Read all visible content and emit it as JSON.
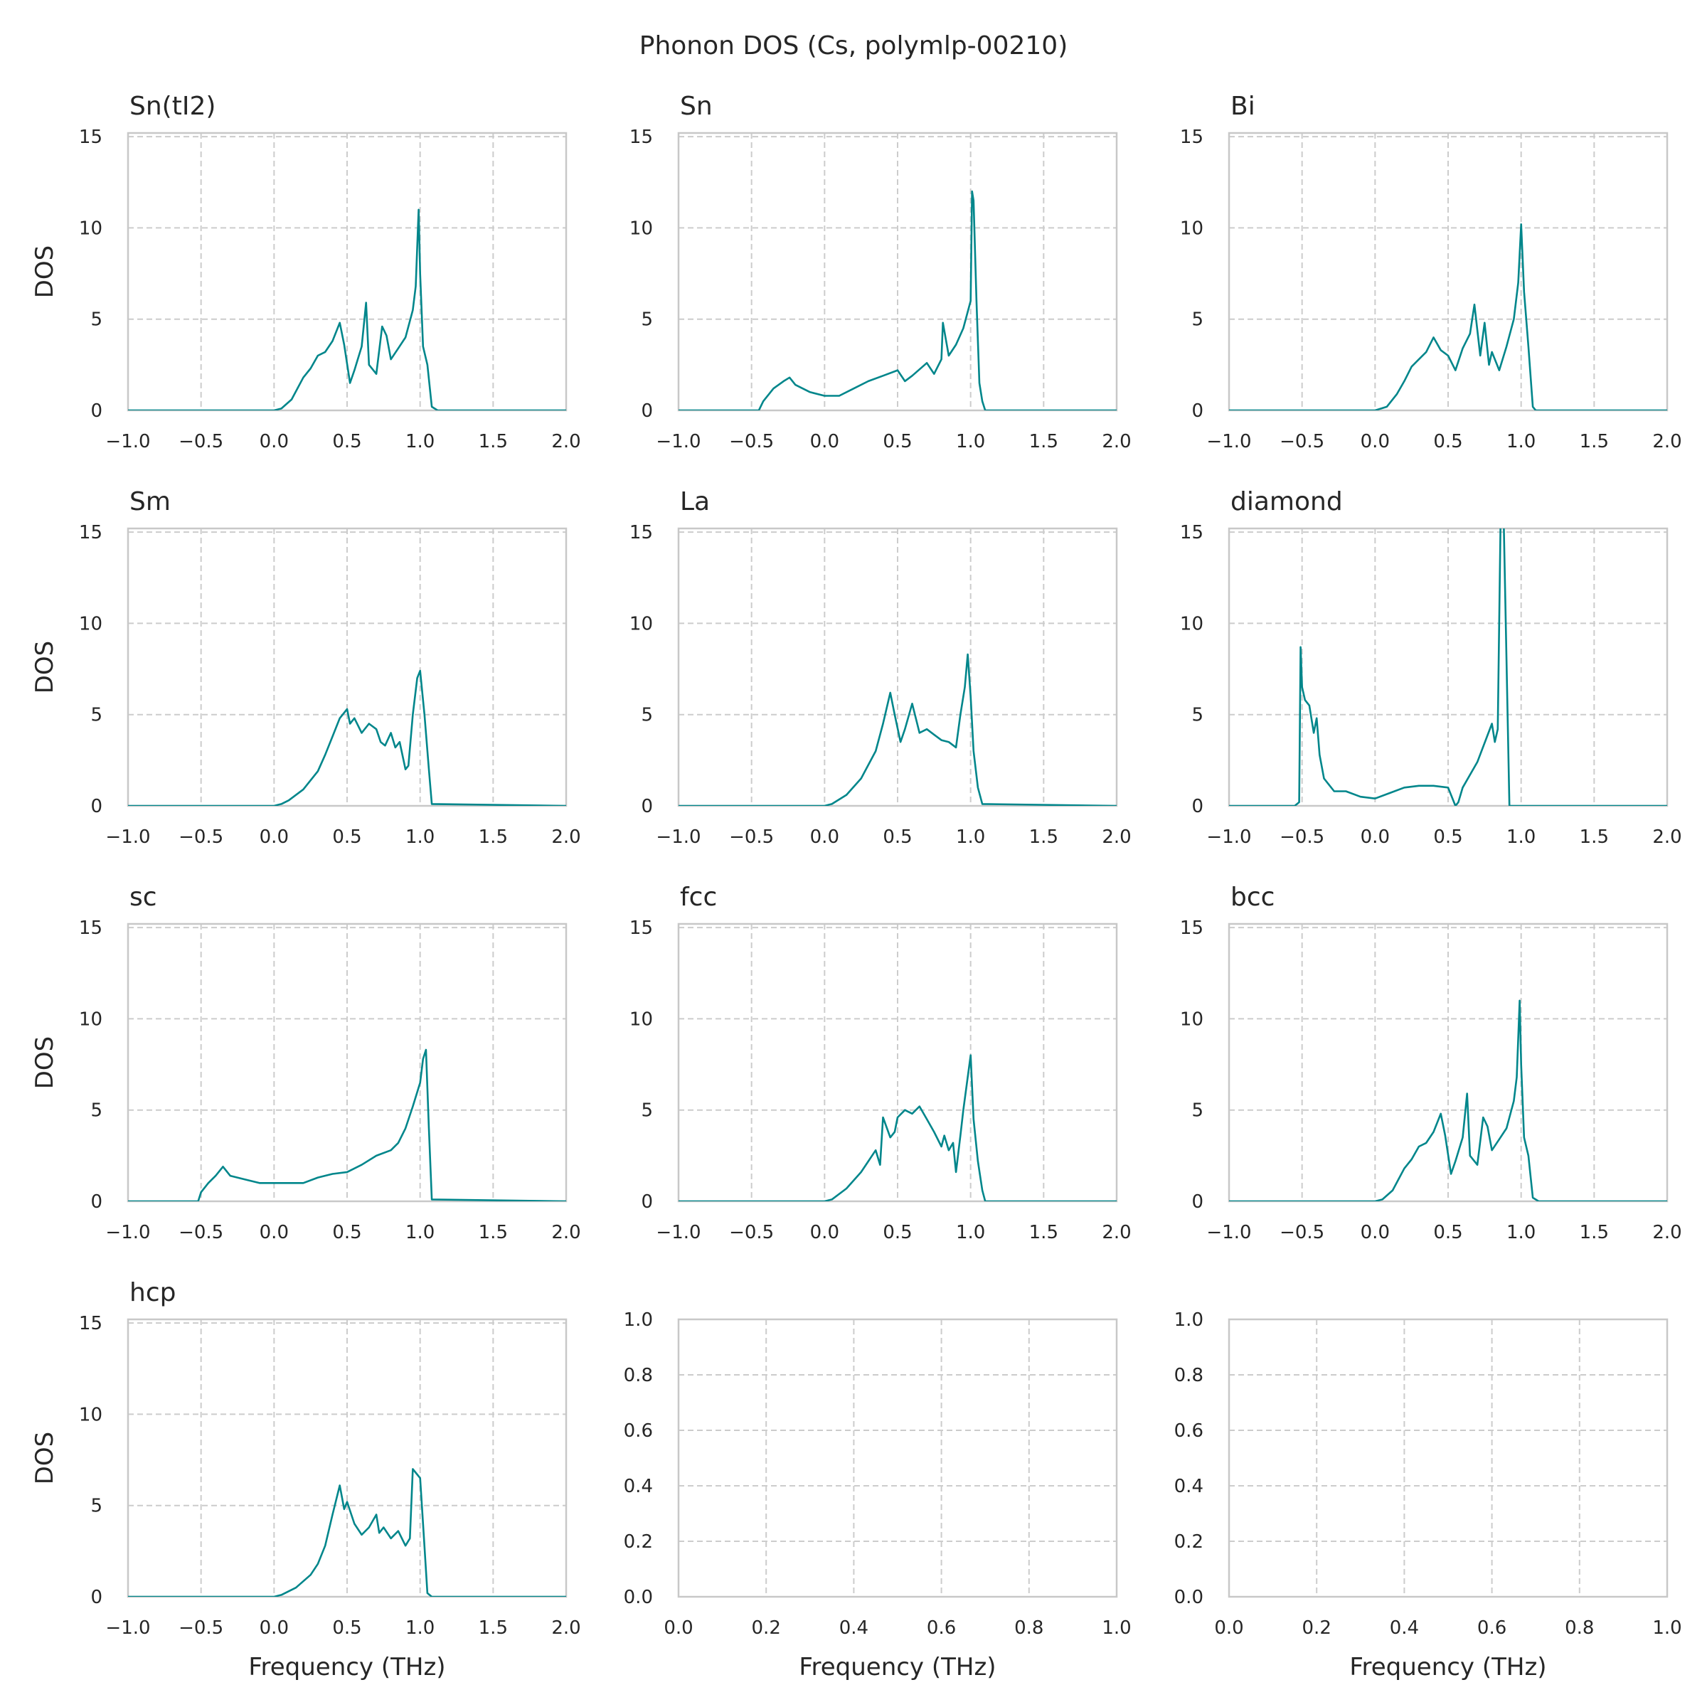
{
  "figure": {
    "title": "Phonon DOS (Cs, polymlp-00210)",
    "line_color": "#00868b"
  },
  "chart_data": [
    {
      "type": "line",
      "title": "Sn(tI2)",
      "xlabel": "",
      "ylabel": "DOS",
      "xlim": [
        -1,
        2
      ],
      "ylim": [
        0,
        15.2
      ],
      "xticks": [
        "−1.0",
        "−0.5",
        "0.0",
        "0.5",
        "1.0",
        "1.5",
        "2.0"
      ],
      "yticks": [
        "0",
        "5",
        "10",
        "15"
      ],
      "grid": true,
      "x": [
        -1.0,
        0.0,
        0.05,
        0.12,
        0.2,
        0.25,
        0.3,
        0.35,
        0.4,
        0.45,
        0.48,
        0.52,
        0.55,
        0.6,
        0.63,
        0.65,
        0.7,
        0.74,
        0.77,
        0.8,
        0.85,
        0.9,
        0.95,
        0.97,
        0.99,
        1.0,
        1.02,
        1.05,
        1.08,
        1.12,
        2.0
      ],
      "y": [
        0,
        0,
        0.1,
        0.6,
        1.8,
        2.3,
        3.0,
        3.2,
        3.8,
        4.8,
        3.6,
        1.5,
        2.2,
        3.5,
        5.9,
        2.5,
        2.0,
        4.6,
        4.1,
        2.8,
        3.4,
        4.0,
        5.5,
        6.8,
        11.0,
        7.5,
        3.5,
        2.5,
        0.2,
        0,
        0
      ]
    },
    {
      "type": "line",
      "title": "Sn",
      "xlabel": "",
      "ylabel": "",
      "xlim": [
        -1,
        2
      ],
      "ylim": [
        0,
        15.2
      ],
      "xticks": [
        "−1.0",
        "−0.5",
        "0.0",
        "0.5",
        "1.0",
        "1.5",
        "2.0"
      ],
      "yticks": [
        "0",
        "5",
        "10",
        "15"
      ],
      "grid": true,
      "x": [
        -1.0,
        -0.45,
        -0.42,
        -0.35,
        -0.28,
        -0.24,
        -0.2,
        -0.1,
        0.0,
        0.1,
        0.2,
        0.3,
        0.4,
        0.5,
        0.55,
        0.6,
        0.7,
        0.75,
        0.8,
        0.81,
        0.85,
        0.9,
        0.95,
        1.0,
        1.01,
        1.02,
        1.04,
        1.06,
        1.08,
        1.1,
        2.0
      ],
      "y": [
        0,
        0,
        0.5,
        1.2,
        1.6,
        1.8,
        1.4,
        1.0,
        0.8,
        0.8,
        1.2,
        1.6,
        1.9,
        2.2,
        1.6,
        1.9,
        2.6,
        2.0,
        2.8,
        4.8,
        3.0,
        3.6,
        4.5,
        6.0,
        12.0,
        11.5,
        6.0,
        1.5,
        0.5,
        0,
        0
      ]
    },
    {
      "type": "line",
      "title": "Bi",
      "xlabel": "",
      "ylabel": "",
      "xlim": [
        -1,
        2
      ],
      "ylim": [
        0,
        15.2
      ],
      "xticks": [
        "−1.0",
        "−0.5",
        "0.0",
        "0.5",
        "1.0",
        "1.5",
        "2.0"
      ],
      "yticks": [
        "0",
        "5",
        "10",
        "15"
      ],
      "grid": true,
      "x": [
        -1.0,
        0.0,
        0.08,
        0.15,
        0.2,
        0.25,
        0.3,
        0.35,
        0.4,
        0.45,
        0.5,
        0.55,
        0.6,
        0.65,
        0.68,
        0.72,
        0.75,
        0.78,
        0.8,
        0.85,
        0.9,
        0.95,
        0.98,
        1.0,
        1.02,
        1.05,
        1.08,
        1.1,
        2.0
      ],
      "y": [
        0,
        0,
        0.2,
        0.9,
        1.6,
        2.4,
        2.8,
        3.2,
        4.0,
        3.3,
        3.0,
        2.2,
        3.4,
        4.2,
        5.8,
        3.0,
        4.8,
        2.5,
        3.2,
        2.2,
        3.5,
        5.0,
        7.0,
        10.2,
        6.5,
        3.5,
        0.2,
        0,
        0
      ]
    },
    {
      "type": "line",
      "title": "Sm",
      "xlabel": "",
      "ylabel": "DOS",
      "xlim": [
        -1,
        2
      ],
      "ylim": [
        0,
        15.2
      ],
      "xticks": [
        "−1.0",
        "−0.5",
        "0.0",
        "0.5",
        "1.0",
        "1.5",
        "2.0"
      ],
      "yticks": [
        "0",
        "5",
        "10",
        "15"
      ],
      "grid": true,
      "x": [
        -1.0,
        0.0,
        0.05,
        0.1,
        0.2,
        0.3,
        0.35,
        0.4,
        0.45,
        0.5,
        0.52,
        0.55,
        0.6,
        0.65,
        0.7,
        0.73,
        0.76,
        0.8,
        0.83,
        0.86,
        0.9,
        0.92,
        0.95,
        0.98,
        1.0,
        1.03,
        1.06,
        1.08,
        2.0
      ],
      "y": [
        0,
        0,
        0.1,
        0.3,
        0.9,
        1.9,
        2.8,
        3.8,
        4.8,
        5.3,
        4.5,
        4.8,
        4.0,
        4.5,
        4.2,
        3.5,
        3.3,
        4.0,
        3.2,
        3.5,
        2.0,
        2.2,
        5.0,
        7.0,
        7.4,
        5.0,
        2.0,
        0.1,
        0
      ]
    },
    {
      "type": "line",
      "title": "La",
      "xlabel": "",
      "ylabel": "",
      "xlim": [
        -1,
        2
      ],
      "ylim": [
        0,
        15.2
      ],
      "xticks": [
        "−1.0",
        "−0.5",
        "0.0",
        "0.5",
        "1.0",
        "1.5",
        "2.0"
      ],
      "yticks": [
        "0",
        "5",
        "10",
        "15"
      ],
      "grid": true,
      "x": [
        -1.0,
        0.0,
        0.05,
        0.15,
        0.25,
        0.35,
        0.4,
        0.45,
        0.48,
        0.52,
        0.55,
        0.6,
        0.65,
        0.7,
        0.75,
        0.8,
        0.85,
        0.9,
        0.93,
        0.96,
        0.98,
        1.0,
        1.02,
        1.05,
        1.08,
        2.0
      ],
      "y": [
        0,
        0,
        0.1,
        0.6,
        1.5,
        3.0,
        4.5,
        6.2,
        5.0,
        3.5,
        4.2,
        5.6,
        4.0,
        4.2,
        3.9,
        3.6,
        3.5,
        3.2,
        5.0,
        6.5,
        8.3,
        6.0,
        3.0,
        1.0,
        0.1,
        0
      ]
    },
    {
      "type": "line",
      "title": "diamond",
      "xlabel": "",
      "ylabel": "",
      "xlim": [
        -1,
        2
      ],
      "ylim": [
        0,
        15.2
      ],
      "xticks": [
        "−1.0",
        "−0.5",
        "0.0",
        "0.5",
        "1.0",
        "1.5",
        "2.0"
      ],
      "yticks": [
        "0",
        "5",
        "10",
        "15"
      ],
      "grid": true,
      "x": [
        -1.0,
        -0.55,
        -0.52,
        -0.51,
        -0.5,
        -0.48,
        -0.45,
        -0.42,
        -0.4,
        -0.38,
        -0.35,
        -0.32,
        -0.28,
        -0.2,
        -0.1,
        0.0,
        0.1,
        0.2,
        0.3,
        0.4,
        0.5,
        0.55,
        0.57,
        0.6,
        0.7,
        0.8,
        0.82,
        0.84,
        0.86,
        0.88,
        0.9,
        0.92,
        0.94,
        1.0,
        2.0
      ],
      "y": [
        0,
        0,
        0.2,
        8.7,
        6.5,
        5.8,
        5.5,
        4.0,
        4.8,
        2.8,
        1.5,
        1.2,
        0.8,
        0.8,
        0.5,
        0.4,
        0.7,
        1.0,
        1.1,
        1.1,
        1.0,
        0.0,
        0.2,
        1.0,
        2.4,
        4.5,
        3.5,
        4.2,
        16.0,
        16.0,
        8.0,
        0.0,
        0.0,
        0.0,
        0
      ]
    },
    {
      "type": "line",
      "title": "sc",
      "xlabel": "",
      "ylabel": "DOS",
      "xlim": [
        -1,
        2
      ],
      "ylim": [
        0,
        15.2
      ],
      "xticks": [
        "−1.0",
        "−0.5",
        "0.0",
        "0.5",
        "1.0",
        "1.5",
        "2.0"
      ],
      "yticks": [
        "0",
        "5",
        "10",
        "15"
      ],
      "grid": true,
      "x": [
        -1.0,
        -0.52,
        -0.5,
        -0.45,
        -0.4,
        -0.35,
        -0.3,
        -0.2,
        -0.1,
        0.0,
        0.1,
        0.2,
        0.3,
        0.4,
        0.5,
        0.6,
        0.7,
        0.8,
        0.85,
        0.9,
        0.95,
        1.0,
        1.02,
        1.04,
        1.06,
        1.08,
        2.0
      ],
      "y": [
        0,
        0,
        0.5,
        1.0,
        1.4,
        1.9,
        1.4,
        1.2,
        1.0,
        1.0,
        1.0,
        1.0,
        1.3,
        1.5,
        1.6,
        2.0,
        2.5,
        2.8,
        3.2,
        4.0,
        5.2,
        6.5,
        7.8,
        8.3,
        4.0,
        0.1,
        0
      ]
    },
    {
      "type": "line",
      "title": "fcc",
      "xlabel": "",
      "ylabel": "",
      "xlim": [
        -1,
        2
      ],
      "ylim": [
        0,
        15.2
      ],
      "xticks": [
        "−1.0",
        "−0.5",
        "0.0",
        "0.5",
        "1.0",
        "1.5",
        "2.0"
      ],
      "yticks": [
        "0",
        "5",
        "10",
        "15"
      ],
      "grid": true,
      "x": [
        -1.0,
        0.0,
        0.05,
        0.15,
        0.25,
        0.3,
        0.35,
        0.38,
        0.4,
        0.45,
        0.48,
        0.5,
        0.55,
        0.6,
        0.65,
        0.7,
        0.75,
        0.8,
        0.82,
        0.85,
        0.88,
        0.9,
        0.93,
        0.95,
        1.0,
        1.02,
        1.05,
        1.08,
        1.1,
        2.0
      ],
      "y": [
        0,
        0,
        0.1,
        0.7,
        1.6,
        2.2,
        2.8,
        2.0,
        4.6,
        3.5,
        3.8,
        4.6,
        5.0,
        4.8,
        5.2,
        4.5,
        3.8,
        3.0,
        3.6,
        2.8,
        3.2,
        1.6,
        3.6,
        5.0,
        8.0,
        4.5,
        2.2,
        0.6,
        0,
        0
      ]
    },
    {
      "type": "line",
      "title": "bcc",
      "xlabel": "",
      "ylabel": "",
      "xlim": [
        -1,
        2
      ],
      "ylim": [
        0,
        15.2
      ],
      "xticks": [
        "−1.0",
        "−0.5",
        "0.0",
        "0.5",
        "1.0",
        "1.5",
        "2.0"
      ],
      "yticks": [
        "0",
        "5",
        "10",
        "15"
      ],
      "grid": true,
      "x": [
        -1.0,
        0.0,
        0.05,
        0.12,
        0.2,
        0.25,
        0.3,
        0.35,
        0.4,
        0.45,
        0.48,
        0.52,
        0.55,
        0.6,
        0.63,
        0.65,
        0.7,
        0.74,
        0.77,
        0.8,
        0.85,
        0.9,
        0.95,
        0.97,
        0.99,
        1.0,
        1.02,
        1.05,
        1.08,
        1.12,
        2.0
      ],
      "y": [
        0,
        0,
        0.1,
        0.6,
        1.8,
        2.3,
        3.0,
        3.2,
        3.8,
        4.8,
        3.6,
        1.5,
        2.2,
        3.5,
        5.9,
        2.5,
        2.0,
        4.6,
        4.1,
        2.8,
        3.4,
        4.0,
        5.5,
        6.8,
        11.0,
        7.5,
        3.5,
        2.5,
        0.2,
        0,
        0
      ]
    },
    {
      "type": "line",
      "title": "hcp",
      "xlabel": "Frequency (THz)",
      "ylabel": "DOS",
      "xlim": [
        -1,
        2
      ],
      "ylim": [
        0,
        15.2
      ],
      "xticks": [
        "−1.0",
        "−0.5",
        "0.0",
        "0.5",
        "1.0",
        "1.5",
        "2.0"
      ],
      "yticks": [
        "0",
        "5",
        "10",
        "15"
      ],
      "grid": true,
      "x": [
        -1.0,
        0.0,
        0.05,
        0.15,
        0.25,
        0.3,
        0.35,
        0.4,
        0.45,
        0.48,
        0.5,
        0.55,
        0.6,
        0.65,
        0.7,
        0.72,
        0.75,
        0.8,
        0.85,
        0.9,
        0.93,
        0.95,
        0.97,
        1.0,
        1.02,
        1.05,
        1.08,
        2.0
      ],
      "y": [
        0,
        0,
        0.1,
        0.5,
        1.2,
        1.8,
        2.8,
        4.5,
        6.1,
        4.8,
        5.2,
        4.0,
        3.4,
        3.8,
        4.5,
        3.5,
        3.8,
        3.2,
        3.6,
        2.8,
        3.2,
        7.0,
        6.8,
        6.5,
        4.0,
        0.2,
        0,
        0
      ]
    },
    {
      "type": "line",
      "title": "",
      "xlabel": "Frequency (THz)",
      "ylabel": "",
      "xlim": [
        0,
        1
      ],
      "ylim": [
        0,
        1
      ],
      "xticks": [
        "0.0",
        "0.2",
        "0.4",
        "0.6",
        "0.8",
        "1.0"
      ],
      "yticks": [
        "0.0",
        "0.2",
        "0.4",
        "0.6",
        "0.8",
        "1.0"
      ],
      "grid": true,
      "x": [],
      "y": []
    },
    {
      "type": "line",
      "title": "",
      "xlabel": "Frequency (THz)",
      "ylabel": "",
      "xlim": [
        0,
        1
      ],
      "ylim": [
        0,
        1
      ],
      "xticks": [
        "0.0",
        "0.2",
        "0.4",
        "0.6",
        "0.8",
        "1.0"
      ],
      "yticks": [
        "0.0",
        "0.2",
        "0.4",
        "0.6",
        "0.8",
        "1.0"
      ],
      "grid": true,
      "x": [],
      "y": []
    }
  ]
}
